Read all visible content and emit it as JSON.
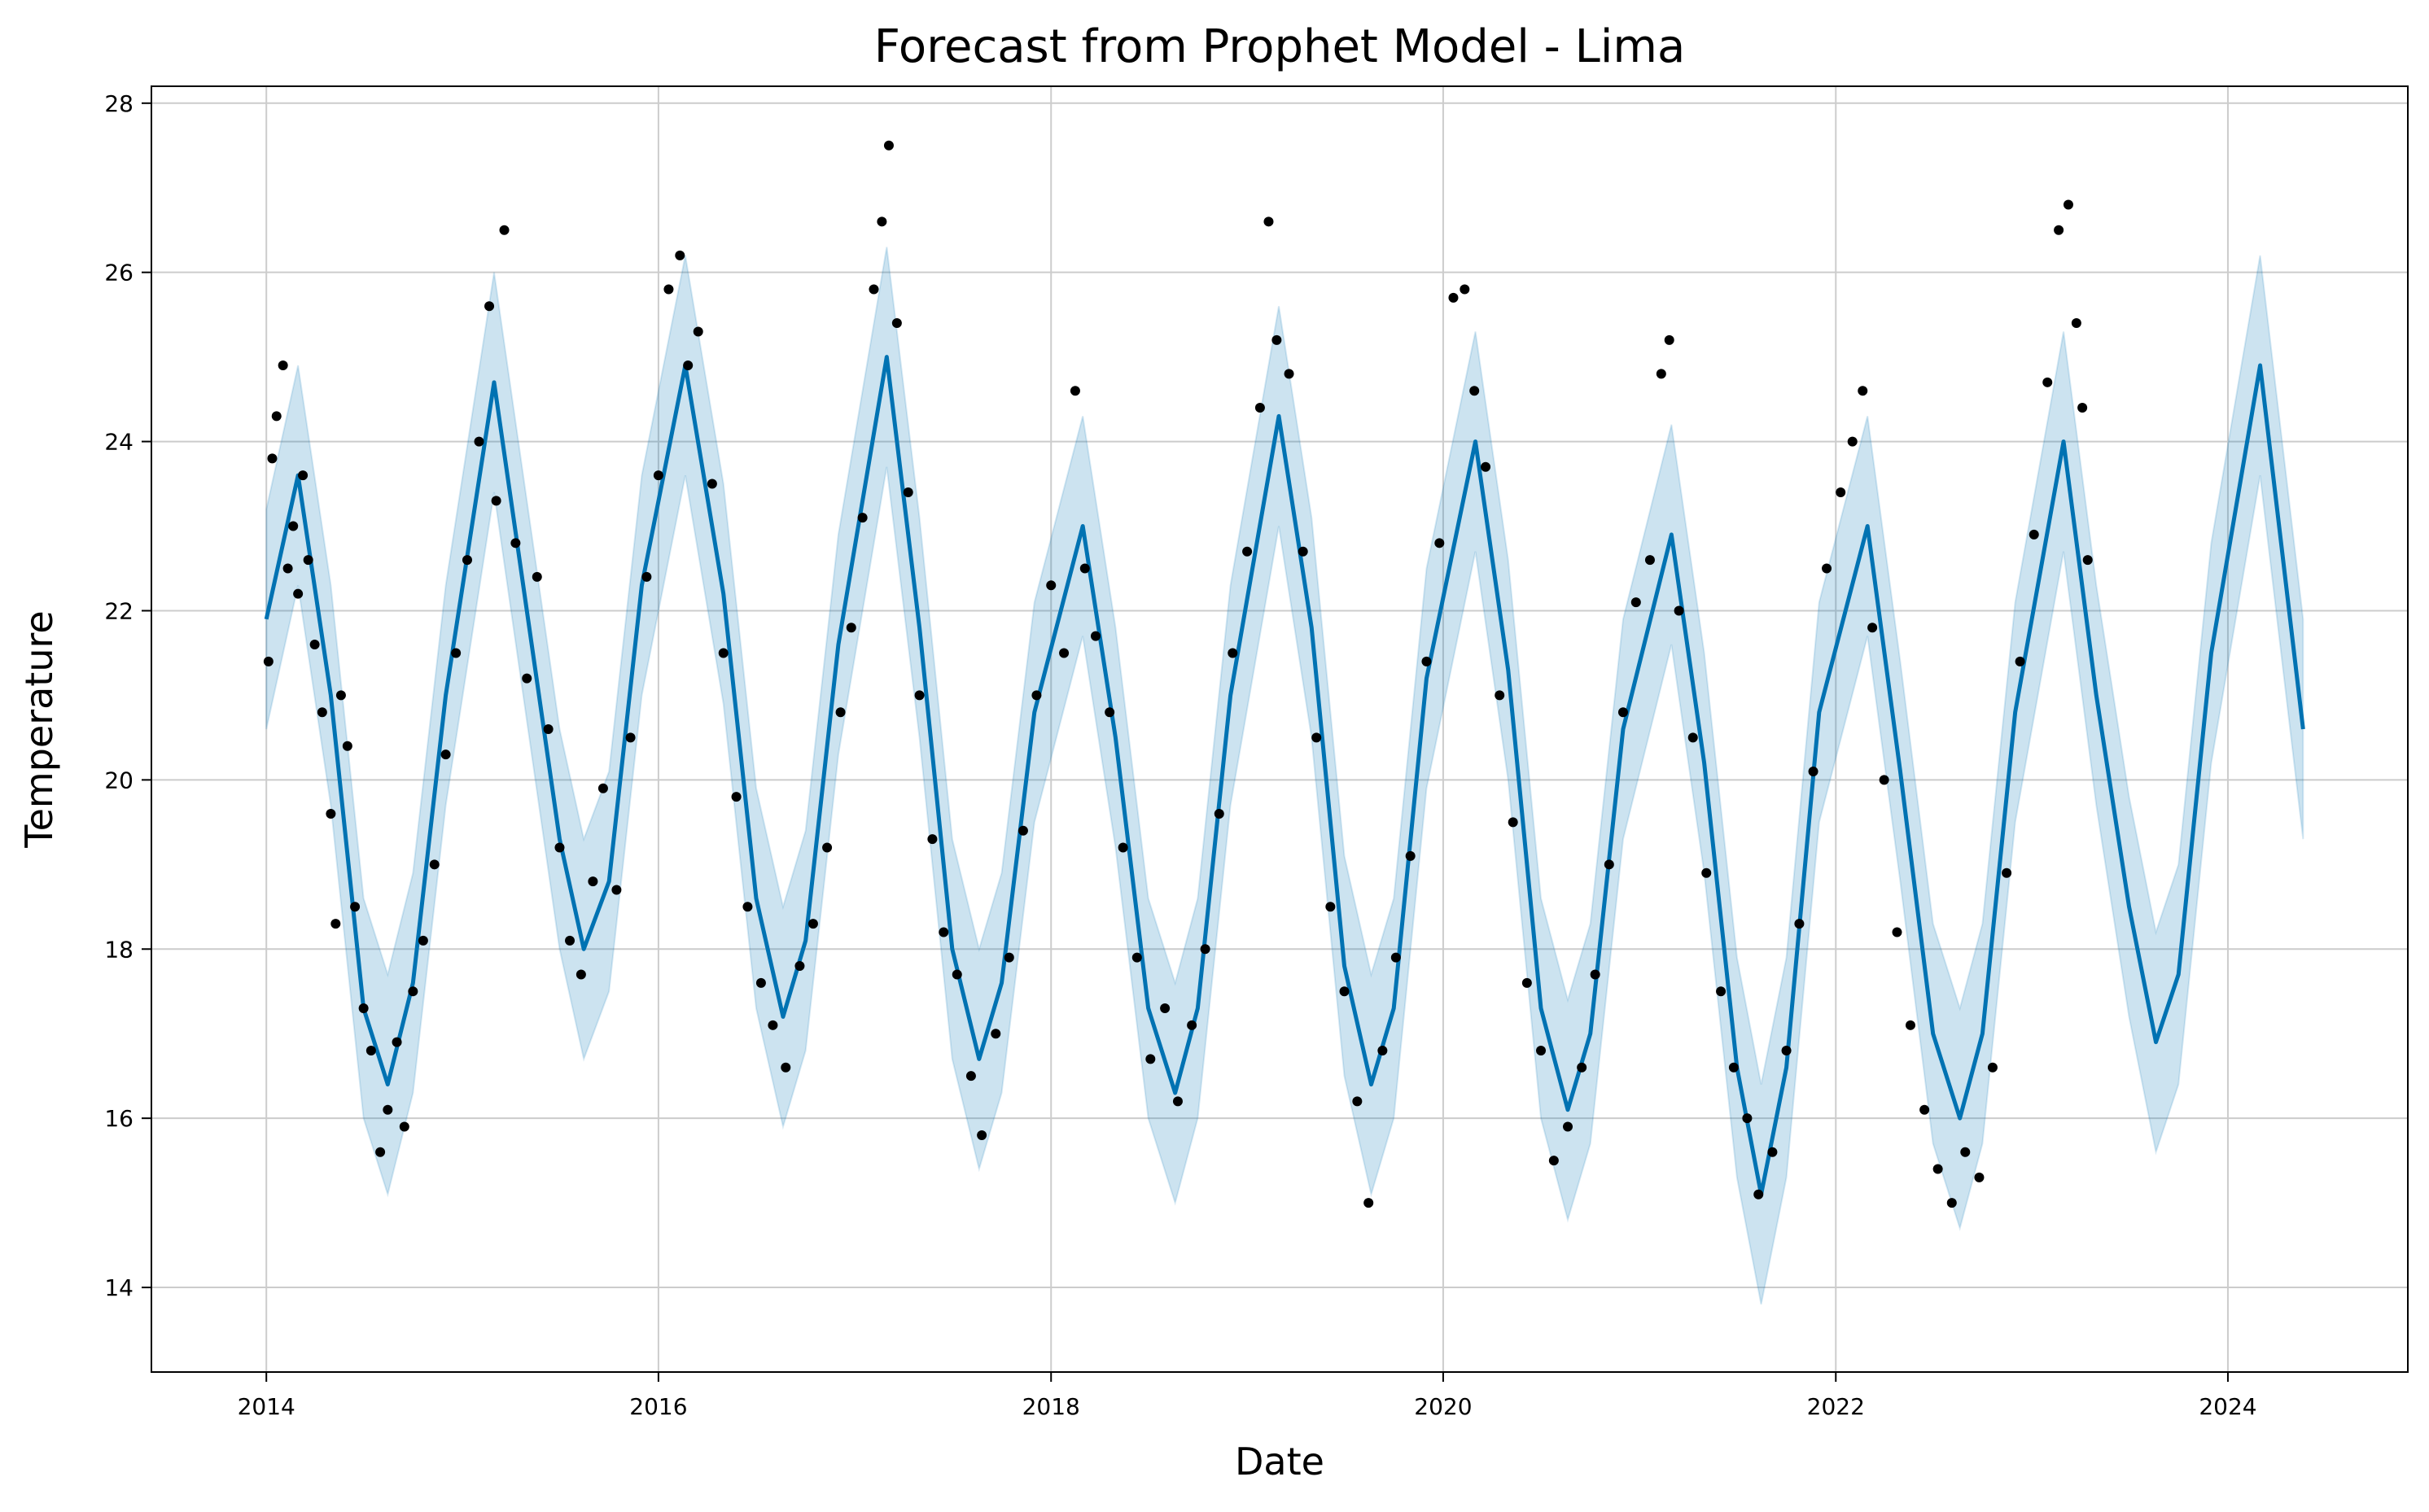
{
  "chart_data": {
    "type": "line",
    "title": "Forecast from Prophet Model - Lima",
    "xlabel": "Date",
    "ylabel": "Temperature",
    "x_axis_type": "date",
    "xlim": [
      "2013-06-01",
      "2024-12-01"
    ],
    "ylim": [
      13,
      28.2
    ],
    "xticks": [
      "2014",
      "2016",
      "2018",
      "2020",
      "2022",
      "2024"
    ],
    "yticks": [
      14,
      16,
      18,
      20,
      22,
      24,
      26,
      28
    ],
    "grid": true,
    "colors": {
      "forecast_line": "#0072B2",
      "uncertainty_band": "#0072B2",
      "observations": "#000000",
      "grid": "#cccccc"
    },
    "series": [
      {
        "kind": "forecast",
        "points": [
          [
            "2014-01-01",
            21.9
          ],
          [
            "2014-03-01",
            23.6
          ],
          [
            "2014-05-01",
            21.0
          ],
          [
            "2014-07-01",
            17.3
          ],
          [
            "2014-08-15",
            16.4
          ],
          [
            "2014-10-01",
            17.6
          ],
          [
            "2014-12-01",
            21.0
          ],
          [
            "2015-03-01",
            24.7
          ],
          [
            "2015-05-01",
            22.0
          ],
          [
            "2015-07-01",
            19.3
          ],
          [
            "2015-08-15",
            18.0
          ],
          [
            "2015-10-01",
            18.8
          ],
          [
            "2015-12-01",
            22.3
          ],
          [
            "2016-02-20",
            24.9
          ],
          [
            "2016-05-01",
            22.2
          ],
          [
            "2016-07-01",
            18.6
          ],
          [
            "2016-08-20",
            17.2
          ],
          [
            "2016-10-01",
            18.1
          ],
          [
            "2016-12-01",
            21.6
          ],
          [
            "2017-03-01",
            25.0
          ],
          [
            "2017-05-01",
            21.8
          ],
          [
            "2017-07-01",
            18.0
          ],
          [
            "2017-08-20",
            16.7
          ],
          [
            "2017-10-01",
            17.6
          ],
          [
            "2017-12-01",
            20.8
          ],
          [
            "2018-03-01",
            23.0
          ],
          [
            "2018-05-01",
            20.5
          ],
          [
            "2018-07-01",
            17.3
          ],
          [
            "2018-08-20",
            16.3
          ],
          [
            "2018-10-01",
            17.3
          ],
          [
            "2018-12-01",
            21.0
          ],
          [
            "2019-03-01",
            24.3
          ],
          [
            "2019-05-01",
            21.8
          ],
          [
            "2019-07-01",
            17.8
          ],
          [
            "2019-08-20",
            16.4
          ],
          [
            "2019-10-01",
            17.3
          ],
          [
            "2019-12-01",
            21.2
          ],
          [
            "2020-03-01",
            24.0
          ],
          [
            "2020-05-01",
            21.3
          ],
          [
            "2020-07-01",
            17.3
          ],
          [
            "2020-08-20",
            16.1
          ],
          [
            "2020-10-01",
            17.0
          ],
          [
            "2020-12-01",
            20.6
          ],
          [
            "2021-03-01",
            22.9
          ],
          [
            "2021-05-01",
            20.2
          ],
          [
            "2021-07-01",
            16.6
          ],
          [
            "2021-08-15",
            15.1
          ],
          [
            "2021-10-01",
            16.6
          ],
          [
            "2021-12-01",
            20.8
          ],
          [
            "2022-03-01",
            23.0
          ],
          [
            "2022-05-01",
            20.1
          ],
          [
            "2022-07-01",
            17.0
          ],
          [
            "2022-08-20",
            16.0
          ],
          [
            "2022-10-01",
            17.0
          ],
          [
            "2022-12-01",
            20.8
          ],
          [
            "2023-03-01",
            24.0
          ],
          [
            "2023-05-01",
            21.0
          ],
          [
            "2023-07-01",
            18.5
          ],
          [
            "2023-08-20",
            16.9
          ],
          [
            "2023-10-01",
            17.7
          ],
          [
            "2023-12-01",
            21.5
          ],
          [
            "2024-03-01",
            24.9
          ],
          [
            "2024-05-20",
            20.6
          ]
        ],
        "band_halfwidth": 1.3
      },
      {
        "kind": "observations",
        "points": [
          [
            "2014-01-05",
            21.4
          ],
          [
            "2014-01-12",
            23.8
          ],
          [
            "2014-01-20",
            24.3
          ],
          [
            "2014-02-01",
            24.9
          ],
          [
            "2014-02-10",
            22.5
          ],
          [
            "2014-02-20",
            23.0
          ],
          [
            "2014-03-01",
            22.2
          ],
          [
            "2014-03-10",
            23.6
          ],
          [
            "2014-03-20",
            22.6
          ],
          [
            "2014-04-01",
            21.6
          ],
          [
            "2014-04-15",
            20.8
          ],
          [
            "2014-05-01",
            19.6
          ],
          [
            "2014-05-10",
            18.3
          ],
          [
            "2014-05-20",
            21.0
          ],
          [
            "2014-06-01",
            20.4
          ],
          [
            "2014-06-15",
            18.5
          ],
          [
            "2014-07-01",
            17.3
          ],
          [
            "2014-07-15",
            16.8
          ],
          [
            "2014-08-01",
            15.6
          ],
          [
            "2014-08-15",
            16.1
          ],
          [
            "2014-09-01",
            16.9
          ],
          [
            "2014-09-15",
            15.9
          ],
          [
            "2014-10-01",
            17.5
          ],
          [
            "2014-10-20",
            18.1
          ],
          [
            "2014-11-10",
            19.0
          ],
          [
            "2014-12-01",
            20.3
          ],
          [
            "2014-12-20",
            21.5
          ],
          [
            "2015-01-10",
            22.6
          ],
          [
            "2015-02-01",
            24.0
          ],
          [
            "2015-02-20",
            25.6
          ],
          [
            "2015-03-05",
            23.3
          ],
          [
            "2015-03-20",
            26.5
          ],
          [
            "2015-04-10",
            22.8
          ],
          [
            "2015-05-01",
            21.2
          ],
          [
            "2015-05-20",
            22.4
          ],
          [
            "2015-06-10",
            20.6
          ],
          [
            "2015-07-01",
            19.2
          ],
          [
            "2015-07-20",
            18.1
          ],
          [
            "2015-08-10",
            17.7
          ],
          [
            "2015-09-01",
            18.8
          ],
          [
            "2015-09-20",
            19.9
          ],
          [
            "2015-10-15",
            18.7
          ],
          [
            "2015-11-10",
            20.5
          ],
          [
            "2015-12-10",
            22.4
          ],
          [
            "2016-01-01",
            23.6
          ],
          [
            "2016-01-20",
            25.8
          ],
          [
            "2016-02-10",
            26.2
          ],
          [
            "2016-02-25",
            24.9
          ],
          [
            "2016-03-15",
            25.3
          ],
          [
            "2016-04-10",
            23.5
          ],
          [
            "2016-05-01",
            21.5
          ],
          [
            "2016-05-25",
            19.8
          ],
          [
            "2016-06-15",
            18.5
          ],
          [
            "2016-07-10",
            17.6
          ],
          [
            "2016-08-01",
            17.1
          ],
          [
            "2016-08-25",
            16.6
          ],
          [
            "2016-09-20",
            17.8
          ],
          [
            "2016-10-15",
            18.3
          ],
          [
            "2016-11-10",
            19.2
          ],
          [
            "2016-12-05",
            20.8
          ],
          [
            "2016-12-25",
            21.8
          ],
          [
            "2017-01-15",
            23.1
          ],
          [
            "2017-02-05",
            25.8
          ],
          [
            "2017-02-20",
            26.6
          ],
          [
            "2017-03-05",
            27.5
          ],
          [
            "2017-03-20",
            25.4
          ],
          [
            "2017-04-10",
            23.4
          ],
          [
            "2017-05-01",
            21.0
          ],
          [
            "2017-05-25",
            19.3
          ],
          [
            "2017-06-15",
            18.2
          ],
          [
            "2017-07-10",
            17.7
          ],
          [
            "2017-08-05",
            16.5
          ],
          [
            "2017-08-25",
            15.8
          ],
          [
            "2017-09-20",
            17.0
          ],
          [
            "2017-10-15",
            17.9
          ],
          [
            "2017-11-10",
            19.4
          ],
          [
            "2017-12-05",
            21.0
          ],
          [
            "2018-01-01",
            22.3
          ],
          [
            "2018-01-25",
            21.5
          ],
          [
            "2018-02-15",
            24.6
          ],
          [
            "2018-03-05",
            22.5
          ],
          [
            "2018-03-25",
            21.7
          ],
          [
            "2018-04-20",
            20.8
          ],
          [
            "2018-05-15",
            19.2
          ],
          [
            "2018-06-10",
            17.9
          ],
          [
            "2018-07-05",
            16.7
          ],
          [
            "2018-08-01",
            17.3
          ],
          [
            "2018-08-25",
            16.2
          ],
          [
            "2018-09-20",
            17.1
          ],
          [
            "2018-10-15",
            18.0
          ],
          [
            "2018-11-10",
            19.6
          ],
          [
            "2018-12-05",
            21.5
          ],
          [
            "2019-01-01",
            22.7
          ],
          [
            "2019-01-25",
            24.4
          ],
          [
            "2019-02-10",
            26.6
          ],
          [
            "2019-02-25",
            25.2
          ],
          [
            "2019-03-20",
            24.8
          ],
          [
            "2019-04-15",
            22.7
          ],
          [
            "2019-05-10",
            20.5
          ],
          [
            "2019-06-05",
            18.5
          ],
          [
            "2019-07-01",
            17.5
          ],
          [
            "2019-07-25",
            16.2
          ],
          [
            "2019-08-15",
            15.0
          ],
          [
            "2019-09-10",
            16.8
          ],
          [
            "2019-10-05",
            17.9
          ],
          [
            "2019-11-01",
            19.1
          ],
          [
            "2019-12-01",
            21.4
          ],
          [
            "2019-12-25",
            22.8
          ],
          [
            "2020-01-20",
            25.7
          ],
          [
            "2020-02-10",
            25.8
          ],
          [
            "2020-02-28",
            24.6
          ],
          [
            "2020-03-20",
            23.7
          ],
          [
            "2020-04-15",
            21.0
          ],
          [
            "2020-05-10",
            19.5
          ],
          [
            "2020-06-05",
            17.6
          ],
          [
            "2020-07-01",
            16.8
          ],
          [
            "2020-07-25",
            15.5
          ],
          [
            "2020-08-20",
            15.9
          ],
          [
            "2020-09-15",
            16.6
          ],
          [
            "2020-10-10",
            17.7
          ],
          [
            "2020-11-05",
            19.0
          ],
          [
            "2020-12-01",
            20.8
          ],
          [
            "2020-12-25",
            22.1
          ],
          [
            "2021-01-20",
            22.6
          ],
          [
            "2021-02-10",
            24.8
          ],
          [
            "2021-02-25",
            25.2
          ],
          [
            "2021-03-15",
            22.0
          ],
          [
            "2021-04-10",
            20.5
          ],
          [
            "2021-05-05",
            18.9
          ],
          [
            "2021-06-01",
            17.5
          ],
          [
            "2021-06-25",
            16.6
          ],
          [
            "2021-07-20",
            16.0
          ],
          [
            "2021-08-10",
            15.1
          ],
          [
            "2021-09-05",
            15.6
          ],
          [
            "2021-10-01",
            16.8
          ],
          [
            "2021-10-25",
            18.3
          ],
          [
            "2021-11-20",
            20.1
          ],
          [
            "2021-12-15",
            22.5
          ],
          [
            "2022-01-10",
            23.4
          ],
          [
            "2022-02-01",
            24.0
          ],
          [
            "2022-02-20",
            24.6
          ],
          [
            "2022-03-10",
            21.8
          ],
          [
            "2022-04-01",
            20.0
          ],
          [
            "2022-04-25",
            18.2
          ],
          [
            "2022-05-20",
            17.1
          ],
          [
            "2022-06-15",
            16.1
          ],
          [
            "2022-07-10",
            15.4
          ],
          [
            "2022-08-05",
            15.0
          ],
          [
            "2022-08-30",
            15.6
          ],
          [
            "2022-09-25",
            15.3
          ],
          [
            "2022-10-20",
            16.6
          ],
          [
            "2022-11-15",
            18.9
          ],
          [
            "2022-12-10",
            21.4
          ],
          [
            "2023-01-05",
            22.9
          ],
          [
            "2023-01-30",
            24.7
          ],
          [
            "2023-02-20",
            26.5
          ],
          [
            "2023-03-10",
            26.8
          ],
          [
            "2023-03-25",
            25.4
          ],
          [
            "2023-04-05",
            24.4
          ],
          [
            "2023-04-15",
            22.6
          ]
        ]
      }
    ]
  }
}
